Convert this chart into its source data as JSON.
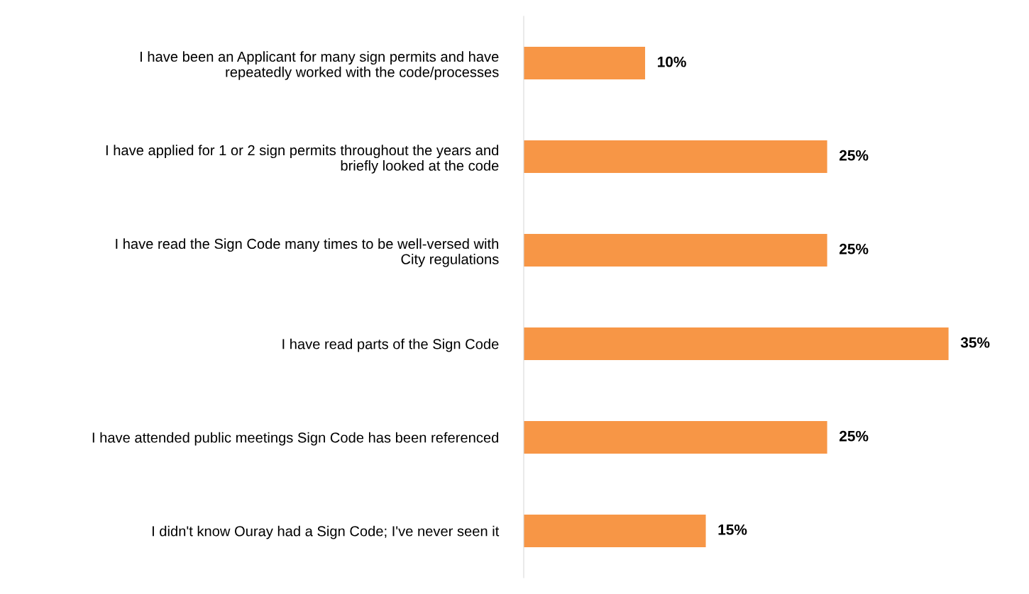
{
  "chart_data": {
    "type": "bar",
    "orientation": "horizontal",
    "categories": [
      "I have been an Applicant for many sign permits and have\nrepeatedly worked with the code/processes",
      "I have applied for 1 or 2 sign permits throughout the years and\nbriefly looked at the code",
      "I have read the Sign Code many times to be well-versed with\nCity regulations",
      "I have read parts of the Sign Code",
      "I have attended public meetings Sign Code has been referenced",
      "I didn't know Ouray had a Sign Code; I've never seen it"
    ],
    "values": [
      10,
      25,
      25,
      35,
      25,
      15
    ],
    "value_labels": [
      "10%",
      "25%",
      "25%",
      "35%",
      "25%",
      "15%"
    ],
    "color": "#f79646"
  }
}
